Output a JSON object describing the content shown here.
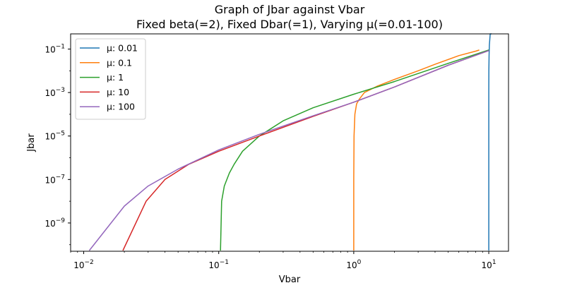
{
  "chart_data": {
    "type": "line",
    "title": "Graph of Jbar against Vbar",
    "subtitle": "Fixed beta(=2), Fixed Dbar(=1), Varying μ(=0.01-100)",
    "xlabel": "Vbar",
    "ylabel": "Jbar",
    "xscale": "log",
    "yscale": "log",
    "xlim": [
      0.008,
      14
    ],
    "ylim": [
      5e-11,
      0.5
    ],
    "grid": false,
    "legend_position": "top-left",
    "x_ticks": [
      {
        "value": 0.01,
        "base": "10",
        "exp": "−2"
      },
      {
        "value": 0.1,
        "base": "10",
        "exp": "−1"
      },
      {
        "value": 1,
        "base": "10",
        "exp": "0"
      },
      {
        "value": 10,
        "base": "10",
        "exp": "1"
      }
    ],
    "y_ticks": [
      {
        "value": 1e-09,
        "base": "10",
        "exp": "−9"
      },
      {
        "value": 1e-07,
        "base": "10",
        "exp": "−7"
      },
      {
        "value": 1e-05,
        "base": "10",
        "exp": "−5"
      },
      {
        "value": 0.001,
        "base": "10",
        "exp": "−3"
      },
      {
        "value": 0.1,
        "base": "10",
        "exp": "−1"
      }
    ],
    "series": [
      {
        "name": "μ: 0.01",
        "color": "#1f77b4",
        "points": [
          [
            10.0,
            4e-11
          ],
          [
            10.0,
            1e-09
          ],
          [
            10.0,
            1e-07
          ],
          [
            10.0,
            1e-05
          ],
          [
            10.0,
            0.001
          ],
          [
            10.02,
            0.01
          ],
          [
            10.05,
            0.05
          ],
          [
            10.1,
            0.15
          ],
          [
            10.25,
            0.5
          ],
          [
            10.5,
            1.0
          ]
        ]
      },
      {
        "name": "μ: 0.1",
        "color": "#ff7f0e",
        "points": [
          [
            1.0,
            4e-11
          ],
          [
            1.0,
            1e-07
          ],
          [
            1.005,
            1e-05
          ],
          [
            1.02,
            0.0001
          ],
          [
            1.05,
            0.0003
          ],
          [
            1.1,
            0.0005
          ],
          [
            1.2,
            0.001
          ],
          [
            1.5,
            0.002
          ],
          [
            2.0,
            0.004
          ],
          [
            3.0,
            0.01
          ],
          [
            4.0,
            0.02
          ],
          [
            6.0,
            0.05
          ],
          [
            8.0,
            0.08
          ],
          [
            8.5,
            0.09
          ]
        ]
      },
      {
        "name": "μ: 1",
        "color": "#2ca02c",
        "points": [
          [
            0.103,
            4e-11
          ],
          [
            0.105,
            1e-08
          ],
          [
            0.11,
            5e-08
          ],
          [
            0.12,
            2e-07
          ],
          [
            0.13,
            5e-07
          ],
          [
            0.15,
            2e-06
          ],
          [
            0.2,
            1e-05
          ],
          [
            0.3,
            5e-05
          ],
          [
            0.5,
            0.0002
          ],
          [
            1.0,
            0.00084
          ],
          [
            2.0,
            0.0032
          ],
          [
            5.0,
            0.022
          ],
          [
            10.0,
            0.09
          ]
        ]
      },
      {
        "name": "μ: 10",
        "color": "#d62728",
        "points": [
          [
            0.0195,
            4e-11
          ],
          [
            0.029,
            1e-08
          ],
          [
            0.04,
            1e-07
          ],
          [
            0.06,
            5e-07
          ],
          [
            0.1,
            2e-06
          ],
          [
            0.2,
            1e-05
          ],
          [
            0.5,
            8e-05
          ],
          [
            1.0,
            0.00036
          ],
          [
            2.0,
            0.0018
          ],
          [
            5.0,
            0.018
          ],
          [
            10.0,
            0.085
          ]
        ]
      },
      {
        "name": "μ: 100",
        "color": "#9467bd",
        "points": [
          [
            0.011,
            4e-11
          ],
          [
            0.02,
            6e-09
          ],
          [
            0.03,
            5e-08
          ],
          [
            0.05,
            3e-07
          ],
          [
            0.1,
            2.3e-06
          ],
          [
            0.2,
            1.2e-05
          ],
          [
            0.5,
            8.5e-05
          ],
          [
            1.0,
            0.00036
          ],
          [
            2.0,
            0.0018
          ],
          [
            5.0,
            0.018
          ],
          [
            10.0,
            0.085
          ]
        ]
      }
    ]
  }
}
